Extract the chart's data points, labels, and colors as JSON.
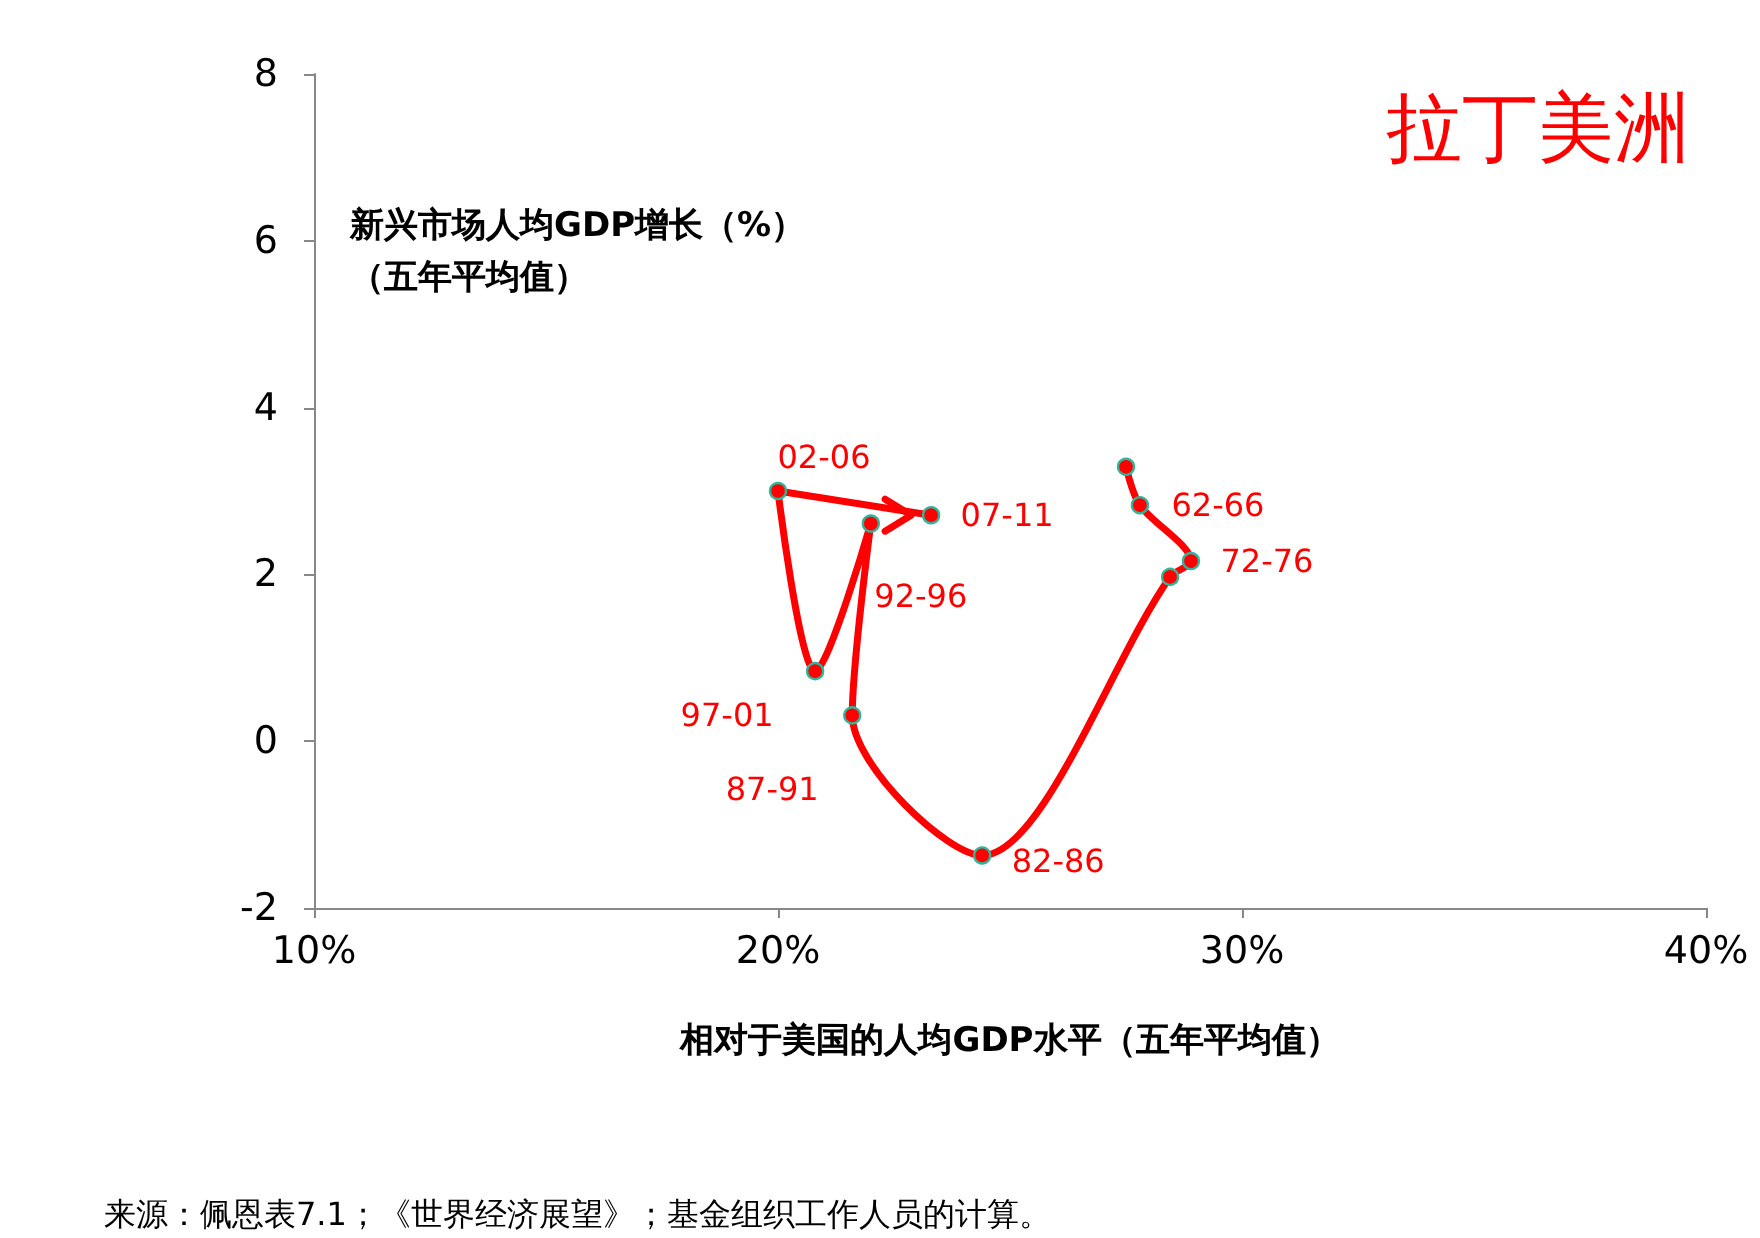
{
  "chart_data": {
    "type": "line",
    "title": "拉丁美洲",
    "ylabel": "新兴市场人均GDP增长（%）（五年平均值）",
    "xlabel": "相对于美国的人均GDP水平（五年平均值）",
    "x": [
      27.5,
      27.8,
      28.9,
      28.45,
      24.4,
      21.6,
      22.0,
      20.8,
      20.0,
      23.3
    ],
    "series": [
      {
        "color": "#ff0000",
        "values": [
          3.29,
          2.83,
          2.16,
          1.97,
          -1.37,
          0.31,
          2.61,
          0.84,
          3.0,
          2.71
        ]
      }
    ],
    "xlim": [
      10,
      40
    ],
    "xticks": [
      {
        "value": 10,
        "label": "10%"
      },
      {
        "value": 20,
        "label": "20%"
      },
      {
        "value": 30,
        "label": "30%"
      },
      {
        "value": 40,
        "label": "40%"
      }
    ],
    "ylim": [
      -2,
      8
    ],
    "yticks": [
      -2,
      0,
      2,
      4,
      6,
      8
    ],
    "grid": false,
    "marker": "circle",
    "line_style": "solid",
    "annotations": [
      {
        "text": "62-66",
        "x": 27.8,
        "y": 2.83
      },
      {
        "text": "72-76",
        "x": 28.9,
        "y": 2.16
      },
      {
        "text": "82-86",
        "x": 24.4,
        "y": -1.37
      },
      {
        "text": "87-91",
        "x": 21.6,
        "y": 0.31
      },
      {
        "text": "92-96",
        "x": 22.0,
        "y": 2.61
      },
      {
        "text": "97-01",
        "x": 20.8,
        "y": 0.84
      },
      {
        "text": "02-06",
        "x": 20.0,
        "y": 3.0
      },
      {
        "text": "07-11",
        "x": 23.3,
        "y": 2.71
      },
      "来源：佩恩表7.1；《世界经济展望》；基金组织工作人员的计算。"
    ]
  }
}
